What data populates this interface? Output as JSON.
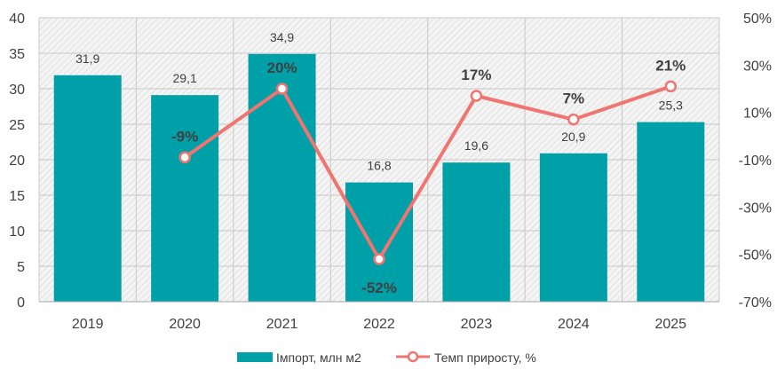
{
  "chart_data": {
    "type": "bar",
    "categories": [
      "2019",
      "2020",
      "2021",
      "2022",
      "2023",
      "2024",
      "2025"
    ],
    "series": [
      {
        "name": "Імпорт, млн м2",
        "type": "bar",
        "axis": "left",
        "color": "#00A0A8",
        "values": [
          31.9,
          29.1,
          34.9,
          16.8,
          19.6,
          20.9,
          25.3
        ],
        "labels": [
          "31,9",
          "29,1",
          "34,9",
          "16,8",
          "19,6",
          "20,9",
          "25,3"
        ]
      },
      {
        "name": "Темп приросту, %",
        "type": "line",
        "axis": "right",
        "color": "#F07470",
        "values": [
          null,
          -9,
          20,
          -52,
          17,
          7,
          21
        ],
        "labels": [
          null,
          "-9%",
          "20%",
          "-52%",
          "17%",
          "7%",
          "21%"
        ]
      }
    ],
    "y_left": {
      "lim": [
        0,
        40
      ],
      "ticks": [
        0,
        5,
        10,
        15,
        20,
        25,
        30,
        35,
        40
      ],
      "tick_labels": [
        "0",
        "5",
        "10",
        "15",
        "20",
        "25",
        "30",
        "35",
        "40"
      ]
    },
    "y_right": {
      "lim": [
        -70,
        50
      ],
      "ticks": [
        -70,
        -50,
        -30,
        -10,
        10,
        30,
        50
      ],
      "tick_labels": [
        "-70%",
        "-50%",
        "-30%",
        "-10%",
        "10%",
        "30%",
        "50%"
      ]
    },
    "grid": true,
    "plot_background": "hatched light gray",
    "legend_position": "bottom"
  }
}
